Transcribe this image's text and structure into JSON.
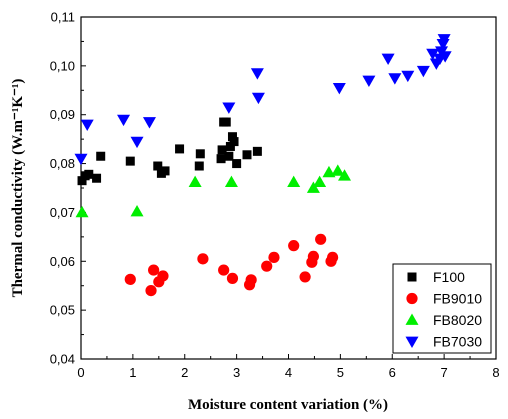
{
  "chart_data": {
    "type": "scatter",
    "title": "",
    "xlabel": "Moisture content variation (%)",
    "ylabel": "Thermal conductivity (W.m⁻¹K⁻¹)",
    "xlim": [
      0,
      8
    ],
    "ylim": [
      0.04,
      0.11
    ],
    "x_ticks": [
      "0",
      "1",
      "2",
      "3",
      "4",
      "5",
      "6",
      "7",
      "8"
    ],
    "y_ticks": [
      "0,04",
      "0,05",
      "0,06",
      "0,07",
      "0,08",
      "0,09",
      "0,10",
      "0,11"
    ],
    "grid": false,
    "legend_position": "bottom-right",
    "series": [
      {
        "name": "F100",
        "marker": "square",
        "color": "#000000",
        "points": [
          [
            0.02,
            0.0765
          ],
          [
            0.08,
            0.0775
          ],
          [
            0.15,
            0.0778
          ],
          [
            0.3,
            0.077
          ],
          [
            0.38,
            0.0815
          ],
          [
            0.95,
            0.0805
          ],
          [
            1.48,
            0.0795
          ],
          [
            1.55,
            0.078
          ],
          [
            1.62,
            0.0785
          ],
          [
            1.9,
            0.083
          ],
          [
            2.28,
            0.0795
          ],
          [
            2.3,
            0.082
          ],
          [
            2.7,
            0.081
          ],
          [
            2.72,
            0.0828
          ],
          [
            2.75,
            0.0885
          ],
          [
            2.8,
            0.0885
          ],
          [
            2.85,
            0.0815
          ],
          [
            2.88,
            0.0835
          ],
          [
            2.92,
            0.0855
          ],
          [
            2.95,
            0.0845
          ],
          [
            3.0,
            0.08
          ],
          [
            3.2,
            0.0818
          ],
          [
            3.4,
            0.0825
          ]
        ]
      },
      {
        "name": "FB9010",
        "marker": "circle",
        "color": "#ff0000",
        "points": [
          [
            0.95,
            0.0563
          ],
          [
            1.35,
            0.054
          ],
          [
            1.4,
            0.0582
          ],
          [
            1.5,
            0.0558
          ],
          [
            1.58,
            0.057
          ],
          [
            2.35,
            0.0605
          ],
          [
            2.75,
            0.0582
          ],
          [
            2.92,
            0.0565
          ],
          [
            3.25,
            0.0552
          ],
          [
            3.28,
            0.0562
          ],
          [
            3.58,
            0.059
          ],
          [
            3.72,
            0.0608
          ],
          [
            4.1,
            0.0632
          ],
          [
            4.32,
            0.0568
          ],
          [
            4.45,
            0.0598
          ],
          [
            4.48,
            0.061
          ],
          [
            4.62,
            0.0645
          ],
          [
            4.82,
            0.06
          ],
          [
            4.85,
            0.0608
          ]
        ]
      },
      {
        "name": "FB8020",
        "marker": "triangle-up",
        "color": "#00ee00",
        "points": [
          [
            0.02,
            0.07
          ],
          [
            1.08,
            0.0702
          ],
          [
            2.2,
            0.0762
          ],
          [
            2.9,
            0.0762
          ],
          [
            4.1,
            0.0762
          ],
          [
            4.48,
            0.075
          ],
          [
            4.6,
            0.0762
          ],
          [
            4.78,
            0.0782
          ],
          [
            4.95,
            0.0785
          ],
          [
            5.08,
            0.0775
          ]
        ]
      },
      {
        "name": "FB7030",
        "marker": "triangle-down",
        "color": "#0000ff",
        "points": [
          [
            0.0,
            0.081
          ],
          [
            0.12,
            0.088
          ],
          [
            0.82,
            0.089
          ],
          [
            1.08,
            0.0845
          ],
          [
            1.32,
            0.0885
          ],
          [
            2.85,
            0.0915
          ],
          [
            3.4,
            0.0985
          ],
          [
            3.42,
            0.0935
          ],
          [
            4.98,
            0.0955
          ],
          [
            5.55,
            0.097
          ],
          [
            5.92,
            0.1015
          ],
          [
            6.05,
            0.0975
          ],
          [
            6.3,
            0.098
          ],
          [
            6.6,
            0.099
          ],
          [
            6.78,
            0.1025
          ],
          [
            6.85,
            0.1005
          ],
          [
            6.92,
            0.1015
          ],
          [
            6.95,
            0.103
          ],
          [
            6.98,
            0.1045
          ],
          [
            7.0,
            0.1055
          ],
          [
            7.02,
            0.102
          ]
        ]
      }
    ]
  }
}
